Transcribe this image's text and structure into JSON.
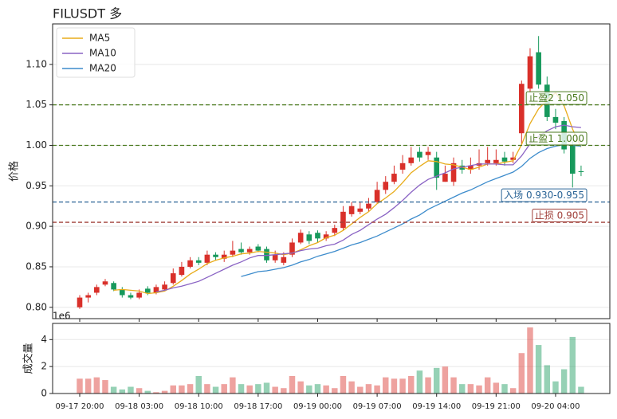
{
  "chart_data": [
    {
      "type": "candlestick",
      "title": "FILUSDT  多",
      "ylabel": "价格",
      "x": [
        "09-17 20:00",
        "09-17 21:00",
        "09-17 22:00",
        "09-17 23:00",
        "09-18 00:00",
        "09-18 01:00",
        "09-18 02:00",
        "09-18 03:00",
        "09-18 04:00",
        "09-18 05:00",
        "09-18 06:00",
        "09-18 07:00",
        "09-18 08:00",
        "09-18 09:00",
        "09-18 10:00",
        "09-18 11:00",
        "09-18 12:00",
        "09-18 13:00",
        "09-18 14:00",
        "09-18 15:00",
        "09-18 16:00",
        "09-18 17:00",
        "09-18 18:00",
        "09-18 19:00",
        "09-18 20:00",
        "09-18 21:00",
        "09-18 22:00",
        "09-18 23:00",
        "09-19 00:00",
        "09-19 01:00",
        "09-19 02:00",
        "09-19 03:00",
        "09-19 04:00",
        "09-19 05:00",
        "09-19 06:00",
        "09-19 07:00",
        "09-19 08:00",
        "09-19 09:00",
        "09-19 10:00",
        "09-19 11:00",
        "09-19 12:00",
        "09-19 13:00",
        "09-19 14:00",
        "09-19 15:00",
        "09-19 16:00",
        "09-19 17:00",
        "09-19 18:00",
        "09-19 19:00",
        "09-19 20:00",
        "09-19 21:00",
        "09-19 22:00",
        "09-19 23:00",
        "09-20 00:00",
        "09-20 01:00",
        "09-20 02:00",
        "09-20 03:00",
        "09-20 04:00",
        "09-20 05:00",
        "09-20 06:00",
        "09-20 07:00"
      ],
      "xticks": [
        "09-17 20:00",
        "09-18 03:00",
        "09-18 10:00",
        "09-18 17:00",
        "09-19 00:00",
        "09-19 07:00",
        "09-19 14:00",
        "09-19 21:00",
        "09-20 04:00"
      ],
      "open": [
        0.8,
        0.812,
        0.818,
        0.828,
        0.83,
        0.822,
        0.815,
        0.812,
        0.823,
        0.818,
        0.822,
        0.83,
        0.84,
        0.85,
        0.858,
        0.855,
        0.865,
        0.86,
        0.865,
        0.872,
        0.868,
        0.875,
        0.872,
        0.858,
        0.855,
        0.865,
        0.88,
        0.89,
        0.892,
        0.885,
        0.892,
        0.898,
        0.915,
        0.918,
        0.922,
        0.93,
        0.945,
        0.955,
        0.97,
        0.978,
        0.992,
        0.988,
        0.985,
        0.955,
        0.955,
        0.975,
        0.97,
        0.975,
        0.978,
        0.978,
        0.985,
        0.982,
        1.015,
        1.07,
        1.115,
        1.075,
        1.035,
        1.03,
        1.0,
        0.968
      ],
      "high": [
        0.815,
        0.818,
        0.828,
        0.835,
        0.832,
        0.825,
        0.818,
        0.822,
        0.826,
        0.828,
        0.832,
        0.848,
        0.856,
        0.862,
        0.862,
        0.87,
        0.868,
        0.87,
        0.882,
        0.88,
        0.875,
        0.878,
        0.875,
        0.87,
        0.868,
        0.885,
        0.896,
        0.894,
        0.895,
        0.894,
        0.902,
        0.925,
        0.93,
        0.93,
        0.935,
        0.955,
        0.962,
        0.975,
        0.988,
        0.998,
        0.998,
        0.998,
        0.992,
        0.975,
        0.985,
        0.982,
        0.985,
        0.995,
        0.998,
        0.995,
        0.992,
        0.992,
        1.08,
        1.12,
        1.135,
        1.085,
        1.045,
        1.035,
        1.005,
        0.975
      ],
      "low": [
        0.798,
        0.806,
        0.815,
        0.826,
        0.82,
        0.812,
        0.81,
        0.81,
        0.815,
        0.816,
        0.82,
        0.828,
        0.838,
        0.848,
        0.852,
        0.852,
        0.858,
        0.856,
        0.862,
        0.865,
        0.865,
        0.868,
        0.855,
        0.855,
        0.852,
        0.862,
        0.878,
        0.878,
        0.88,
        0.882,
        0.888,
        0.895,
        0.912,
        0.915,
        0.918,
        0.928,
        0.94,
        0.952,
        0.965,
        0.975,
        0.98,
        0.982,
        0.945,
        0.955,
        0.95,
        0.965,
        0.965,
        0.97,
        0.975,
        0.975,
        0.975,
        0.978,
        1.0,
        1.065,
        1.07,
        1.03,
        1.02,
        0.99,
        0.948,
        0.962
      ],
      "close": [
        0.812,
        0.815,
        0.825,
        0.832,
        0.822,
        0.815,
        0.812,
        0.818,
        0.818,
        0.825,
        0.828,
        0.842,
        0.85,
        0.858,
        0.855,
        0.865,
        0.862,
        0.865,
        0.87,
        0.868,
        0.872,
        0.87,
        0.858,
        0.865,
        0.862,
        0.88,
        0.892,
        0.882,
        0.885,
        0.89,
        0.898,
        0.918,
        0.925,
        0.922,
        0.928,
        0.945,
        0.955,
        0.965,
        0.978,
        0.985,
        0.985,
        0.992,
        0.96,
        0.965,
        0.978,
        0.97,
        0.975,
        0.978,
        0.982,
        0.982,
        0.98,
        0.985,
        1.076,
        1.11,
        1.075,
        1.035,
        1.028,
        0.995,
        0.965,
        0.967
      ],
      "up_color": "#d9302a",
      "down_color": "#17995c",
      "series": [
        {
          "name": "MA5",
          "color": "#e8ac1a",
          "values": [
            null,
            null,
            null,
            null,
            0.821,
            0.822,
            0.821,
            0.82,
            0.817,
            0.818,
            0.82,
            0.826,
            0.833,
            0.841,
            0.847,
            0.854,
            0.858,
            0.861,
            0.863,
            0.866,
            0.867,
            0.869,
            0.868,
            0.867,
            0.865,
            0.867,
            0.871,
            0.876,
            0.88,
            0.886,
            0.889,
            0.895,
            0.903,
            0.911,
            0.918,
            0.928,
            0.935,
            0.943,
            0.954,
            0.966,
            0.974,
            0.981,
            0.98,
            0.977,
            0.976,
            0.973,
            0.97,
            0.973,
            0.977,
            0.977,
            0.979,
            0.981,
            1.001,
            1.027,
            1.045,
            1.056,
            1.065,
            1.049,
            1.02,
            0.998
          ]
        },
        {
          "name": "MA10",
          "color": "#8a63c4",
          "values": [
            null,
            null,
            null,
            null,
            null,
            null,
            null,
            null,
            null,
            0.819,
            0.821,
            0.824,
            0.826,
            0.829,
            0.832,
            0.837,
            0.842,
            0.847,
            0.852,
            0.856,
            0.861,
            0.864,
            0.864,
            0.865,
            0.866,
            0.867,
            0.87,
            0.872,
            0.873,
            0.876,
            0.878,
            0.883,
            0.89,
            0.895,
            0.902,
            0.909,
            0.915,
            0.923,
            0.932,
            0.942,
            0.951,
            0.958,
            0.962,
            0.966,
            0.971,
            0.973,
            0.975,
            0.977,
            0.977,
            0.977,
            0.976,
            0.976,
            0.987,
            1.002,
            1.011,
            1.018,
            1.023,
            1.025,
            1.023,
            1.022
          ]
        },
        {
          "name": "MA20",
          "color": "#3d8ccc",
          "values": [
            null,
            null,
            null,
            null,
            null,
            null,
            null,
            null,
            null,
            null,
            null,
            null,
            null,
            null,
            null,
            null,
            null,
            null,
            null,
            0.838,
            0.841,
            0.844,
            0.845,
            0.847,
            0.849,
            0.852,
            0.856,
            0.859,
            0.863,
            0.866,
            0.869,
            0.873,
            0.877,
            0.88,
            0.884,
            0.888,
            0.893,
            0.898,
            0.903,
            0.909,
            0.914,
            0.921,
            0.926,
            0.931,
            0.936,
            0.941,
            0.945,
            0.95,
            0.955,
            0.959,
            0.963,
            0.967,
            0.974,
            0.984,
            0.991,
            0.996,
            0.999,
            1.001,
            1.0,
            0.999
          ]
        }
      ],
      "levels": [
        {
          "label": "止盈2 1.050",
          "value": 1.05,
          "color": "#4a7a1e"
        },
        {
          "label": "止盈1 1.000",
          "value": 1.0,
          "color": "#4a7a1e"
        },
        {
          "label": "入场 0.930-0.955",
          "value": 0.93,
          "color": "#2a6496"
        },
        {
          "label": "止损 0.905",
          "value": 0.905,
          "color": "#a0403a"
        }
      ],
      "ylim": [
        0.786,
        1.15
      ],
      "yticks": [
        {
          "value": 0.8,
          "label": "0.80"
        },
        0.85,
        {
          "value": 0.9,
          "label": "0.90"
        },
        0.95,
        {
          "value": 1.0,
          "label": "1.00"
        },
        1.05,
        {
          "value": 1.1,
          "label": "1.10"
        }
      ],
      "grid": true,
      "legend": "upper left"
    },
    {
      "type": "bar",
      "ylabel": "成交量",
      "offset_label": "1e6",
      "values": [
        1.1,
        1.1,
        1.2,
        1.0,
        0.5,
        0.3,
        0.5,
        0.4,
        0.2,
        0.1,
        0.2,
        0.6,
        0.6,
        0.7,
        1.3,
        0.7,
        0.5,
        0.7,
        1.2,
        0.7,
        0.6,
        0.7,
        0.8,
        0.5,
        0.4,
        1.3,
        0.9,
        0.6,
        0.7,
        0.6,
        0.4,
        1.3,
        0.9,
        0.5,
        0.7,
        0.6,
        1.2,
        1.1,
        1.1,
        1.3,
        1.7,
        1.2,
        1.9,
        2.0,
        1.2,
        0.7,
        0.7,
        0.6,
        1.2,
        0.8,
        0.7,
        0.4,
        3.0,
        4.9,
        3.6,
        2.1,
        0.9,
        1.8,
        4.2,
        0.5
      ],
      "ylim": [
        0,
        5.2
      ],
      "yticks": [
        0,
        2,
        4
      ],
      "grid": true
    }
  ]
}
